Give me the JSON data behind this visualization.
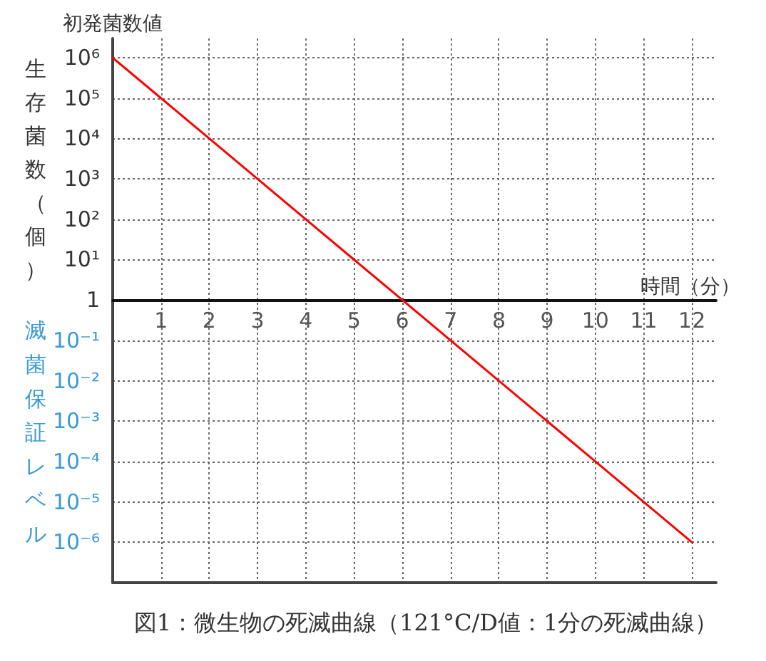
{
  "chart_data": {
    "type": "line",
    "title": "図1：微生物の死滅曲線（121°C/D値：1分の死滅曲線）",
    "xlabel": "時間（分）",
    "ylabel": "生存菌数（個）",
    "annotations": [
      "初発菌数値",
      "滅菌保証レベル"
    ],
    "x": [
      0,
      1,
      2,
      3,
      4,
      5,
      6,
      7,
      8,
      9,
      10,
      11,
      12
    ],
    "series": [
      {
        "color": "#ff0000",
        "values": [
          1000000,
          100000,
          10000,
          1000,
          100,
          10,
          1,
          0.1,
          0.01,
          0.001,
          0.0001,
          1e-05,
          1e-06
        ]
      }
    ],
    "log": "y",
    "xlim": [
      0,
      12.5
    ],
    "xticks": [
      1,
      2,
      3,
      4,
      5,
      6,
      7,
      8,
      9,
      10,
      11,
      12
    ],
    "ylim": [
      1e-07,
      3000000
    ],
    "yticks": [
      {
        "value": 1000000,
        "label": "10⁶"
      },
      {
        "value": 100000,
        "label": "10⁵"
      },
      {
        "value": 10000,
        "label": "10⁴"
      },
      {
        "value": 1000,
        "label": "10³"
      },
      {
        "value": 100,
        "label": "10²"
      },
      {
        "value": 10,
        "label": "10¹"
      },
      1,
      {
        "value": 0.1,
        "label": "10⁻¹"
      },
      {
        "value": 0.01,
        "label": "10⁻²"
      },
      {
        "value": 0.001,
        "label": "10⁻³"
      },
      {
        "value": 0.0001,
        "label": "10⁻⁴"
      },
      {
        "value": 1e-05,
        "label": "10⁻⁵"
      },
      {
        "value": 1e-06,
        "label": "10⁻⁶"
      }
    ],
    "grid": true,
    "marker": "none"
  }
}
